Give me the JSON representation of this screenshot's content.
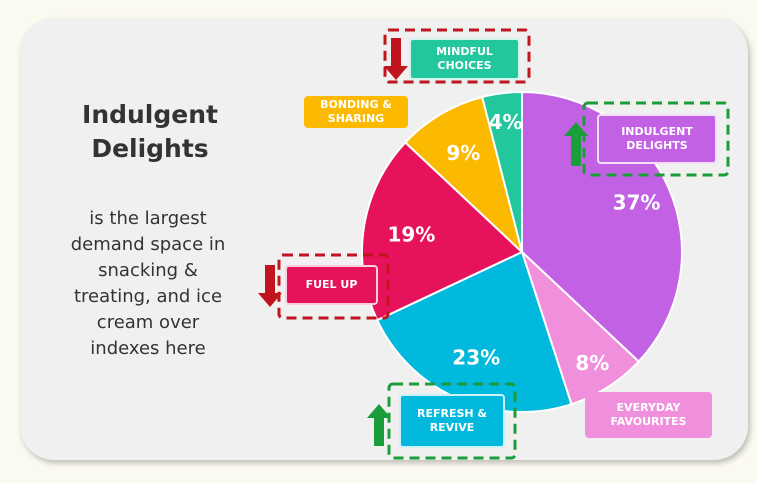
{
  "chart_data": {
    "type": "pie",
    "title": "Indulgent Delights",
    "subtitle": "is the largest demand space in snacking & treating, and ice cream over indexes here",
    "categories": [
      "INDULGENT DELIGHTS",
      "EVERYDAY FAVOURITES",
      "REFRESH & REVIVE",
      "FUEL UP",
      "BONDING & SHARING",
      "MINDFUL CHOICES"
    ],
    "values": [
      37,
      8,
      23,
      19,
      9,
      4
    ],
    "value_labels": [
      "37%",
      "8%",
      "23%",
      "19%",
      "9%",
      "4%"
    ],
    "colors": [
      "#c261e4",
      "#f08fdc",
      "#00b9dc",
      "#e6125c",
      "#fbba00",
      "#22c79e"
    ],
    "trends": [
      "up",
      null,
      "up",
      "down",
      null,
      "down"
    ]
  }
}
